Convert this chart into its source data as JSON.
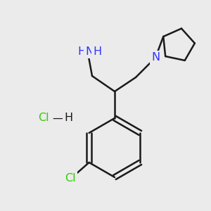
{
  "background_color": "#ebebeb",
  "bond_color": "#1a1a1a",
  "bond_width": 1.8,
  "atom_colors": {
    "N": "#3333ff",
    "Cl": "#33cc00",
    "H": "#1a1a1a"
  },
  "font_size_atom": 11.5,
  "font_size_sub": 8,
  "figsize": [
    3.0,
    3.0
  ],
  "dpi": 100
}
